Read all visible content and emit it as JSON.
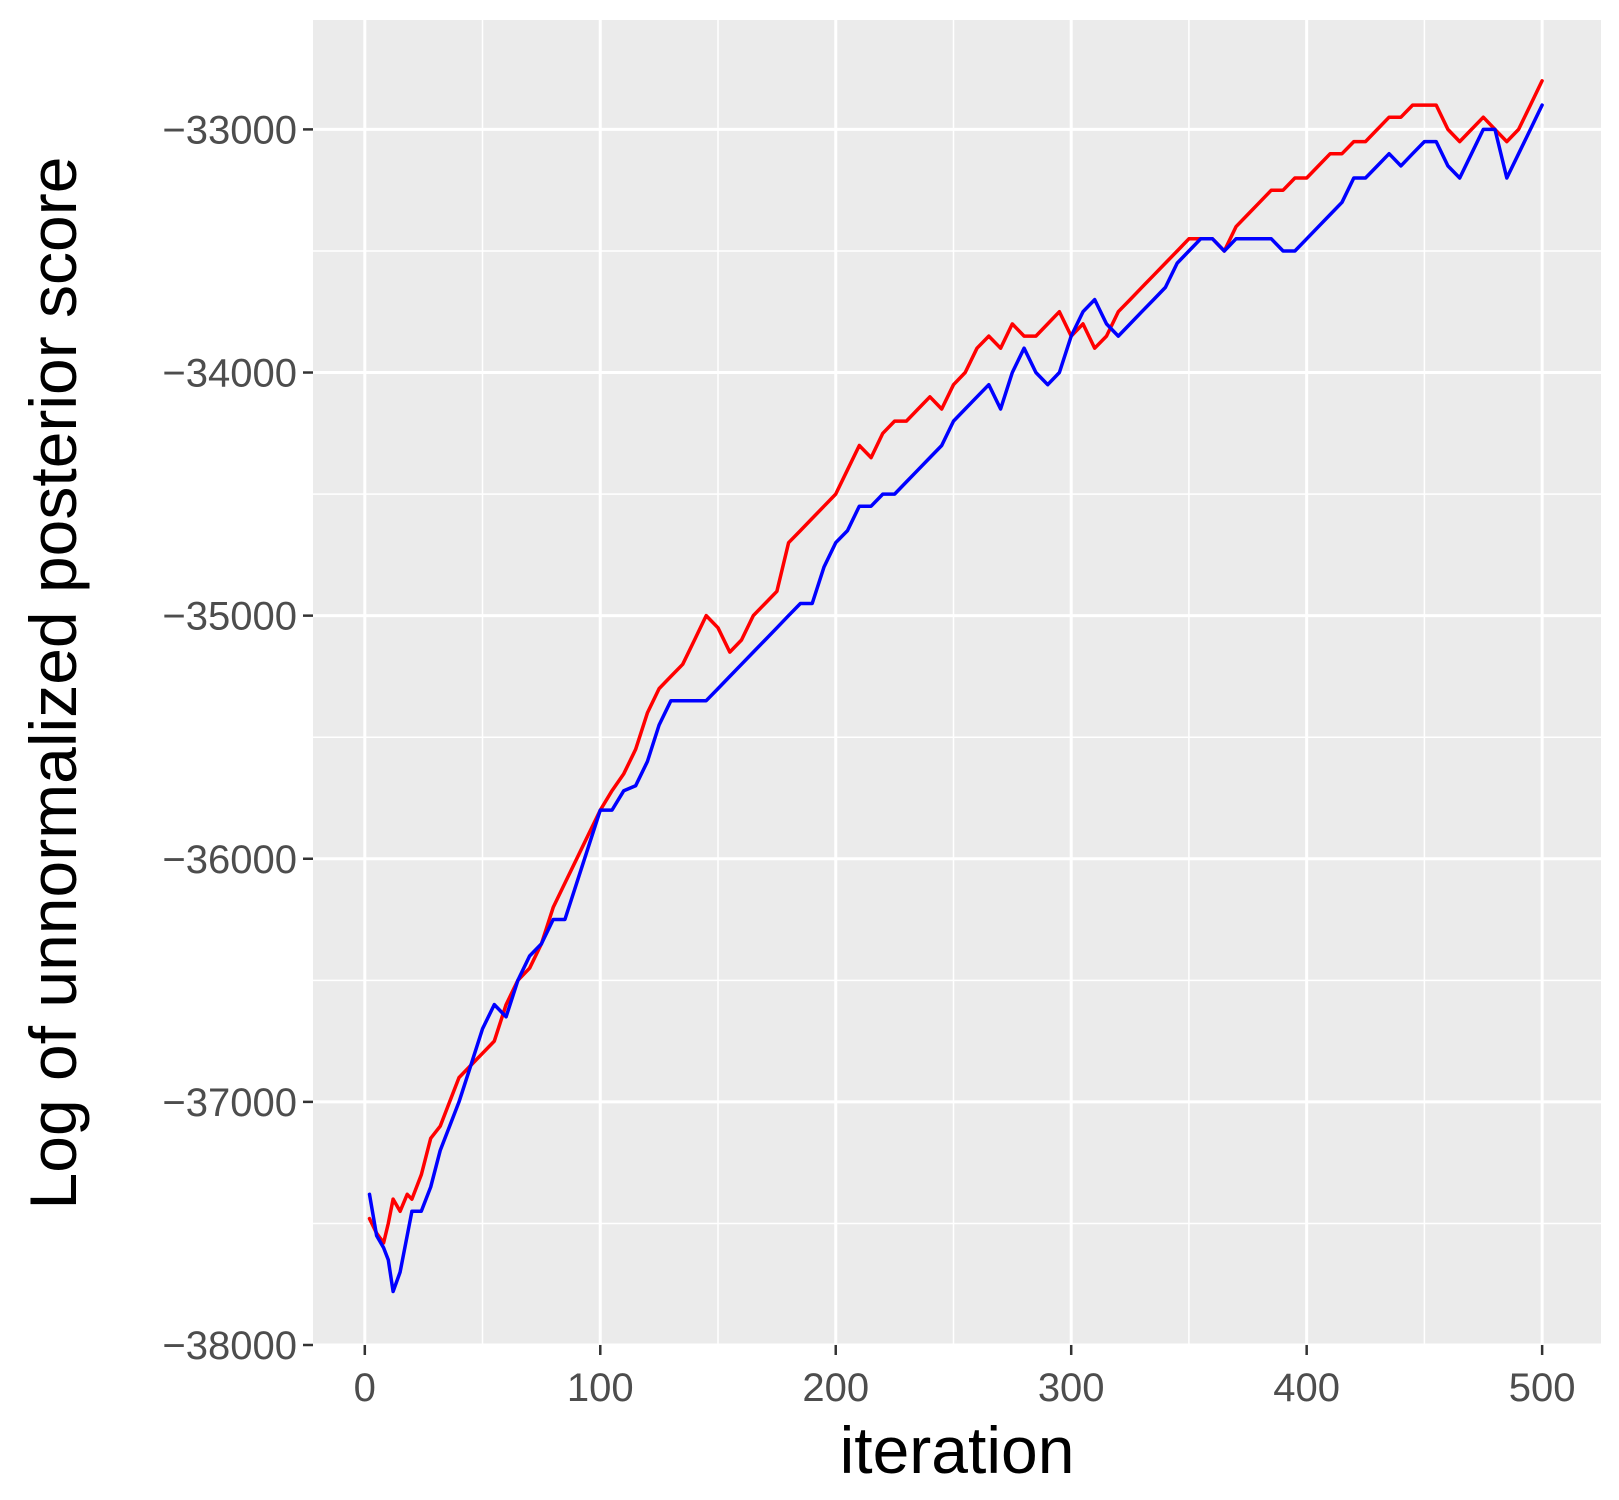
{
  "chart_data": {
    "type": "line",
    "title": "",
    "xlabel": "iteration",
    "ylabel": "Log of unnormalized posterior score",
    "xlim": [
      -22,
      525
    ],
    "ylim": [
      -38000,
      -32550
    ],
    "x_ticks": [
      0,
      100,
      200,
      300,
      400,
      500
    ],
    "x_tick_labels": [
      "0",
      "100",
      "200",
      "300",
      "400",
      "500"
    ],
    "y_ticks": [
      -38000,
      -37000,
      -36000,
      -35000,
      -34000,
      -33000
    ],
    "y_tick_labels": [
      "−38000",
      "−37000",
      "−36000",
      "−35000",
      "−34000",
      "−33000"
    ],
    "grid": true,
    "panel_background": "#ebebeb",
    "grid_color": "#ffffff",
    "legend": "none",
    "series": [
      {
        "color": "#ff0000",
        "x": [
          2,
          5,
          8,
          10,
          12,
          15,
          18,
          20,
          24,
          28,
          32,
          36,
          40,
          45,
          50,
          55,
          60,
          65,
          70,
          75,
          80,
          85,
          90,
          95,
          100,
          105,
          110,
          115,
          120,
          125,
          130,
          135,
          140,
          145,
          150,
          155,
          160,
          165,
          170,
          175,
          180,
          185,
          190,
          195,
          200,
          205,
          210,
          215,
          220,
          225,
          230,
          235,
          240,
          245,
          250,
          255,
          260,
          265,
          270,
          275,
          280,
          285,
          290,
          295,
          300,
          305,
          310,
          315,
          320,
          325,
          330,
          335,
          340,
          345,
          350,
          355,
          360,
          365,
          370,
          375,
          380,
          385,
          390,
          395,
          400,
          405,
          410,
          415,
          420,
          425,
          430,
          435,
          440,
          445,
          450,
          455,
          460,
          465,
          470,
          475,
          480,
          485,
          490,
          495,
          500
        ],
        "y": [
          -37480,
          -37540,
          -37580,
          -37500,
          -37400,
          -37450,
          -37380,
          -37400,
          -37300,
          -37150,
          -37100,
          -37000,
          -36900,
          -36850,
          -36800,
          -36750,
          -36600,
          -36500,
          -36450,
          -36350,
          -36200,
          -36100,
          -36000,
          -35900,
          -35800,
          -35720,
          -35650,
          -35550,
          -35400,
          -35300,
          -35250,
          -35200,
          -35100,
          -35000,
          -35050,
          -35150,
          -35100,
          -35000,
          -34950,
          -34900,
          -34700,
          -34650,
          -34600,
          -34550,
          -34500,
          -34400,
          -34300,
          -34350,
          -34250,
          -34200,
          -34200,
          -34150,
          -34100,
          -34150,
          -34050,
          -34000,
          -33900,
          -33850,
          -33900,
          -33800,
          -33850,
          -33850,
          -33800,
          -33750,
          -33850,
          -33800,
          -33900,
          -33850,
          -33750,
          -33700,
          -33650,
          -33600,
          -33550,
          -33500,
          -33450,
          -33450,
          -33450,
          -33500,
          -33400,
          -33350,
          -33300,
          -33250,
          -33250,
          -33200,
          -33200,
          -33150,
          -33100,
          -33100,
          -33050,
          -33050,
          -33000,
          -32950,
          -32950,
          -32900,
          -32900,
          -32900,
          -33000,
          -33050,
          -33000,
          -32950,
          -33000,
          -33050,
          -33000,
          -32900,
          -32800
        ]
      },
      {
        "color": "#0000ff",
        "x": [
          2,
          5,
          8,
          10,
          12,
          15,
          18,
          20,
          24,
          28,
          32,
          36,
          40,
          45,
          50,
          55,
          60,
          65,
          70,
          75,
          80,
          85,
          90,
          95,
          100,
          105,
          110,
          115,
          120,
          125,
          130,
          135,
          140,
          145,
          150,
          155,
          160,
          165,
          170,
          175,
          180,
          185,
          190,
          195,
          200,
          205,
          210,
          215,
          220,
          225,
          230,
          235,
          240,
          245,
          250,
          255,
          260,
          265,
          270,
          275,
          280,
          285,
          290,
          295,
          300,
          305,
          310,
          315,
          320,
          325,
          330,
          335,
          340,
          345,
          350,
          355,
          360,
          365,
          370,
          375,
          380,
          385,
          390,
          395,
          400,
          405,
          410,
          415,
          420,
          425,
          430,
          435,
          440,
          445,
          450,
          455,
          460,
          465,
          470,
          475,
          480,
          485,
          490,
          495,
          500
        ],
        "y": [
          -37380,
          -37550,
          -37600,
          -37650,
          -37780,
          -37700,
          -37550,
          -37450,
          -37450,
          -37350,
          -37200,
          -37100,
          -37000,
          -36850,
          -36700,
          -36600,
          -36650,
          -36500,
          -36400,
          -36350,
          -36250,
          -36250,
          -36100,
          -35950,
          -35800,
          -35800,
          -35720,
          -35700,
          -35600,
          -35450,
          -35350,
          -35350,
          -35350,
          -35350,
          -35300,
          -35250,
          -35200,
          -35150,
          -35100,
          -35050,
          -35000,
          -34950,
          -34950,
          -34800,
          -34700,
          -34650,
          -34550,
          -34550,
          -34500,
          -34500,
          -34450,
          -34400,
          -34350,
          -34300,
          -34200,
          -34150,
          -34100,
          -34050,
          -34150,
          -34000,
          -33900,
          -34000,
          -34050,
          -34000,
          -33850,
          -33750,
          -33700,
          -33800,
          -33850,
          -33800,
          -33750,
          -33700,
          -33650,
          -33550,
          -33500,
          -33450,
          -33450,
          -33500,
          -33450,
          -33450,
          -33450,
          -33450,
          -33500,
          -33500,
          -33450,
          -33400,
          -33350,
          -33300,
          -33200,
          -33200,
          -33150,
          -33100,
          -33150,
          -33100,
          -33050,
          -33050,
          -33150,
          -33200,
          -33100,
          -33000,
          -33000,
          -33200,
          -33100,
          -33000,
          -32900
        ]
      }
    ]
  }
}
